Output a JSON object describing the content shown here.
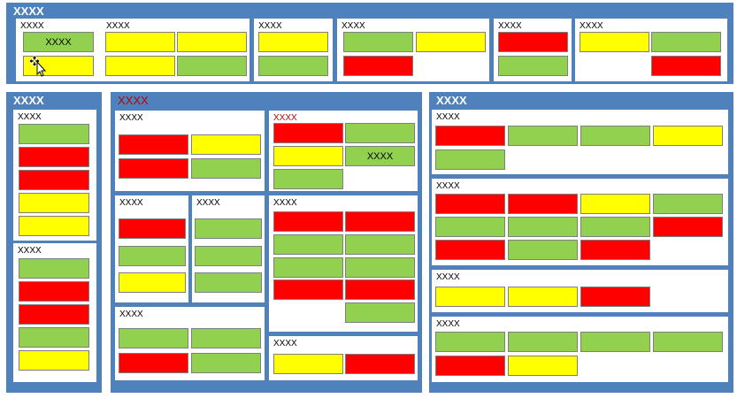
{
  "palette": {
    "panel": "#4f81bd",
    "green": "#92d050",
    "yellow": "#ffff00",
    "red": "#ff0000",
    "title_red": "#c00000"
  },
  "panels": {
    "top": "XXXX",
    "left": "XXXX",
    "middle": "XXXX",
    "right": "XXXX"
  },
  "cards": {
    "t1": "XXXX",
    "t2": "XXXX",
    "t3": "XXXX",
    "t4": "XXXX",
    "t5": "XXXX",
    "t6": "XXXX",
    "l1": "XXXX",
    "l2": "XXXX",
    "m1": "XXXX",
    "m2": "XXXX",
    "m3": "XXXX",
    "m4": "XXXX",
    "m5": "XXXX",
    "m6": "XXXX",
    "m7": "XXXX",
    "r1": "XXXX",
    "r2": "XXXX",
    "r3": "XXXX",
    "r4": "XXXX"
  },
  "block_labels": {
    "top_first": "XXXX",
    "middle_right_top": "XXXX"
  },
  "cursor_icon": "move-cursor-icon"
}
